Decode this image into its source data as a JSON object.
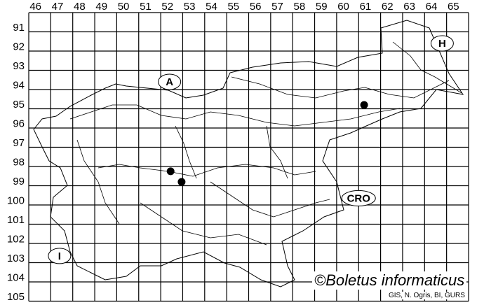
{
  "map": {
    "column_labels": [
      "46",
      "47",
      "48",
      "49",
      "50",
      "51",
      "52",
      "53",
      "54",
      "55",
      "56",
      "57",
      "58",
      "59",
      "60",
      "61",
      "62",
      "63",
      "64",
      "65"
    ],
    "row_labels": [
      "91",
      "92",
      "93",
      "94",
      "95",
      "96",
      "97",
      "98",
      "99",
      "100",
      "101",
      "102",
      "103",
      "104",
      "105"
    ],
    "neighbour_labels": [
      {
        "text": "A",
        "x": 52.4,
        "y": 94.6
      },
      {
        "text": "H",
        "x": 64.8,
        "y": 92.6
      },
      {
        "text": "CRO",
        "x": 61.0,
        "y": 100.65
      },
      {
        "text": "I",
        "x": 47.4,
        "y": 103.65
      }
    ],
    "occurrences": [
      {
        "x": 61.25,
        "y": 95.8
      },
      {
        "x": 52.45,
        "y": 99.25
      },
      {
        "x": 52.95,
        "y": 99.8
      }
    ],
    "colors": {
      "lines": "#000000",
      "dots": "#000000",
      "background": "#ffffff"
    }
  },
  "copyright": "©Boletus informaticus",
  "credits": "GIS, N. Ogris, BI, GURS"
}
